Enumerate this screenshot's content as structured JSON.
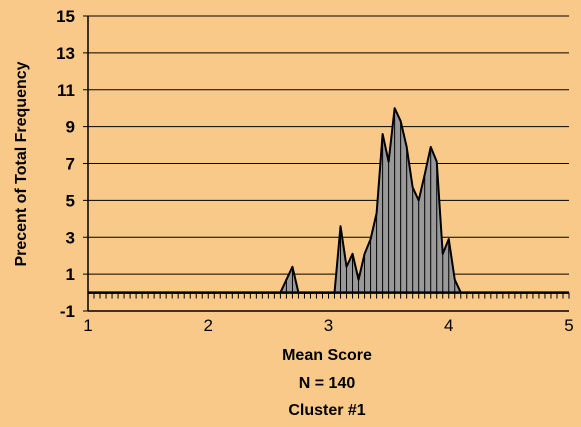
{
  "chart_data": {
    "type": "area",
    "xlabel": "Mean Score",
    "xlabel_lines": [
      "Mean Score",
      "N = 140",
      "Cluster #1"
    ],
    "ylabel": "Precent of Total Frequency",
    "xlim": [
      1,
      5
    ],
    "ylim": [
      -1,
      15
    ],
    "x_ticks": [
      "1",
      "2",
      "3",
      "4",
      "5"
    ],
    "y_ticks": [
      "-1",
      "1",
      "3",
      "5",
      "7",
      "9",
      "11",
      "13",
      "15"
    ],
    "grid": true,
    "legend": "none",
    "fill_color": "#999999",
    "background_color": "#f9c98a",
    "x": [
      1.0,
      1.05,
      1.1,
      1.15,
      1.2,
      1.25,
      1.3,
      1.35,
      1.4,
      1.45,
      1.5,
      1.55,
      1.6,
      1.65,
      1.7,
      1.75,
      1.8,
      1.85,
      1.9,
      1.95,
      2.0,
      2.05,
      2.1,
      2.15,
      2.2,
      2.25,
      2.3,
      2.35,
      2.4,
      2.45,
      2.5,
      2.55,
      2.6,
      2.65,
      2.7,
      2.75,
      2.8,
      2.85,
      2.9,
      2.95,
      3.0,
      3.05,
      3.1,
      3.15,
      3.2,
      3.25,
      3.3,
      3.35,
      3.4,
      3.45,
      3.5,
      3.55,
      3.6,
      3.65,
      3.7,
      3.75,
      3.8,
      3.85,
      3.9,
      3.95,
      4.0,
      4.05,
      4.1,
      4.15,
      4.2,
      4.25,
      4.3,
      4.35,
      4.4,
      4.45,
      4.5,
      4.55,
      4.6,
      4.65,
      4.7,
      4.75,
      4.8,
      4.85,
      4.9,
      4.95,
      5.0
    ],
    "values": [
      0,
      0,
      0,
      0,
      0,
      0,
      0,
      0,
      0,
      0,
      0,
      0,
      0,
      0,
      0,
      0,
      0,
      0,
      0,
      0,
      0,
      0,
      0,
      0,
      0,
      0,
      0,
      0,
      0,
      0,
      0,
      0,
      0,
      0.7,
      1.4,
      0,
      0,
      0,
      0,
      0,
      0,
      0,
      3.6,
      1.4,
      2.1,
      0.7,
      2.1,
      2.9,
      4.3,
      8.6,
      7.1,
      10.0,
      9.3,
      7.9,
      5.7,
      5.0,
      6.4,
      7.9,
      7.1,
      2.1,
      2.9,
      0.7,
      0,
      0,
      0,
      0,
      0,
      0,
      0,
      0,
      0,
      0,
      0,
      0,
      0,
      0,
      0,
      0,
      0,
      0,
      0
    ]
  }
}
